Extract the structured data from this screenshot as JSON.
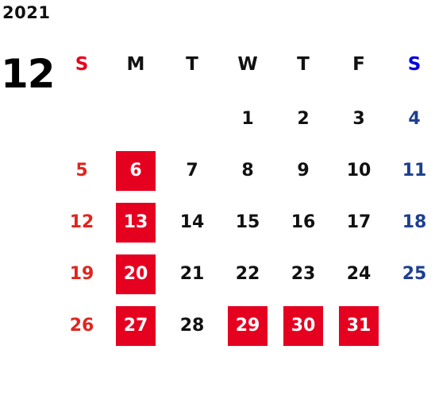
{
  "calendar": {
    "year": "2021",
    "month": "12",
    "weekdays": [
      "S",
      "M",
      "T",
      "W",
      "T",
      "F",
      "S"
    ],
    "weeks": [
      [
        null,
        null,
        null,
        1,
        2,
        3,
        4
      ],
      [
        5,
        6,
        7,
        8,
        9,
        10,
        11
      ],
      [
        12,
        13,
        14,
        15,
        16,
        17,
        18
      ],
      [
        19,
        20,
        21,
        22,
        23,
        24,
        25
      ],
      [
        26,
        27,
        28,
        29,
        30,
        31,
        null
      ]
    ],
    "highlighted_days": [
      6,
      13,
      20,
      27,
      29,
      30,
      31
    ],
    "colors": {
      "highlight_bg": "#e60020",
      "highlight_text": "#ffffff",
      "sunday": "#e0251e",
      "saturday": "#1e3f8f",
      "weekday": "#111111",
      "sunday_header": "#e8001b",
      "saturday_header": "#0000e0"
    }
  }
}
